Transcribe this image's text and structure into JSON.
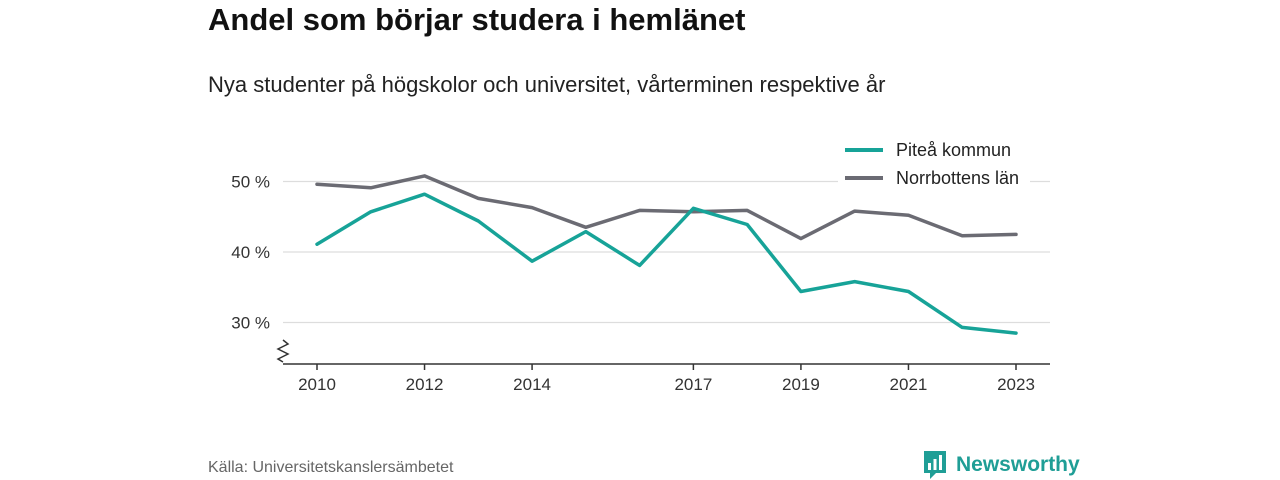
{
  "title": "Andel som börjar studera i hemlänet",
  "subtitle": "Nya studenter på högskolor och universitet, vårterminen respektive år",
  "source": "Källa: Universitetskanslersämbetet",
  "brand": "Newsworthy",
  "colors": {
    "pitea": "#17a398",
    "norrbotten": "#6b6b73",
    "brand": "#1f9e96"
  },
  "chart_data": {
    "type": "line",
    "x": [
      2010,
      2011,
      2012,
      2013,
      2014,
      2015,
      2016,
      2017,
      2018,
      2019,
      2020,
      2021,
      2022,
      2023
    ],
    "x_ticks": [
      2010,
      2012,
      2014,
      2017,
      2019,
      2021,
      2023
    ],
    "y_ticks": [
      30,
      40,
      50
    ],
    "y_tick_labels": [
      "30 %",
      "40 %",
      "50 %"
    ],
    "ylim": [
      24,
      55
    ],
    "y_axis_break": true,
    "grid": true,
    "legend_position": "top-right",
    "series": [
      {
        "name": "Piteå kommun",
        "color": "#17a398",
        "values": [
          41.1,
          45.7,
          48.2,
          44.4,
          38.7,
          42.9,
          38.1,
          46.2,
          43.9,
          34.4,
          35.8,
          34.4,
          29.3,
          28.5
        ]
      },
      {
        "name": "Norrbottens län",
        "color": "#6b6b73",
        "values": [
          49.6,
          49.1,
          50.8,
          47.6,
          46.3,
          43.5,
          45.9,
          45.7,
          45.9,
          41.9,
          45.8,
          45.2,
          42.3,
          42.5
        ]
      }
    ]
  }
}
